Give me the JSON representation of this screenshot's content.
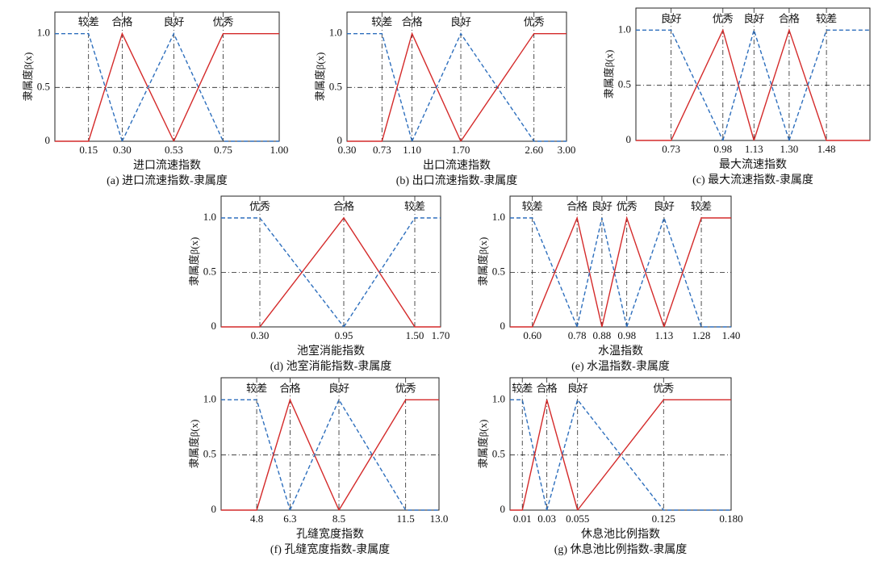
{
  "chart_data": [
    {
      "type": "line",
      "xlabel": "进口流速指数",
      "caption": "(a) 进口流速指数-隶属度",
      "ylabel": "隶属度β(x)",
      "xlim": [
        0,
        1
      ],
      "xticks": [
        0.15,
        {
          "value": 0.3,
          "label": "0.30"
        },
        0.53,
        0.75,
        {
          "value": 1,
          "label": "1.00"
        }
      ],
      "ylim": [
        0,
        1.2
      ],
      "yticks": [
        0,
        0.5,
        {
          "value": 1,
          "label": "1.0"
        }
      ],
      "grid": true,
      "series": [
        {
          "name": "较差",
          "color": "#2e6fbd",
          "dashed": true,
          "x": [
            0,
            0.15,
            0.3
          ],
          "values": [
            1,
            1,
            0
          ]
        },
        {
          "name": "合格",
          "color": "#d42a2a",
          "dashed": false,
          "x": [
            0,
            0.15,
            0.3,
            0.53
          ],
          "values": [
            0,
            0,
            1,
            0
          ]
        },
        {
          "name": "良好",
          "color": "#2e6fbd",
          "dashed": true,
          "x": [
            0.3,
            0.53,
            0.75,
            1
          ],
          "values": [
            0,
            1,
            0,
            0
          ]
        },
        {
          "name": "优秀",
          "color": "#d42a2a",
          "dashed": false,
          "x": [
            0.53,
            0.75,
            1
          ],
          "values": [
            0,
            1,
            1
          ]
        }
      ]
    },
    {
      "type": "line",
      "xlabel": "出口流速指数",
      "caption": "(b) 出口流速指数-隶属度",
      "ylabel": "隶属度β(x)",
      "xlim": [
        0.3,
        3
      ],
      "xticks": [
        {
          "value": 0.3,
          "label": "0.30"
        },
        0.73,
        {
          "value": 1.1,
          "label": "1.10"
        },
        {
          "value": 1.7,
          "label": "1.70"
        },
        {
          "value": 2.6,
          "label": "2.60"
        },
        {
          "value": 3,
          "label": "3.00"
        }
      ],
      "ylim": [
        0,
        1.2
      ],
      "yticks": [
        0,
        0.5,
        {
          "value": 1,
          "label": "1.0"
        }
      ],
      "grid": true,
      "series": [
        {
          "name": "较差",
          "color": "#2e6fbd",
          "dashed": true,
          "x": [
            0.3,
            0.73,
            1.1
          ],
          "values": [
            1,
            1,
            0
          ]
        },
        {
          "name": "合格",
          "color": "#d42a2a",
          "dashed": false,
          "x": [
            0.3,
            0.73,
            1.1,
            1.7
          ],
          "values": [
            0,
            0,
            1,
            0
          ]
        },
        {
          "name": "良好",
          "color": "#2e6fbd",
          "dashed": true,
          "x": [
            1.1,
            1.7,
            2.6,
            3
          ],
          "values": [
            0,
            1,
            0,
            0
          ]
        },
        {
          "name": "优秀",
          "color": "#d42a2a",
          "dashed": false,
          "x": [
            1.7,
            2.6,
            3
          ],
          "values": [
            0,
            1,
            1
          ]
        }
      ]
    },
    {
      "type": "line",
      "xlabel": "最大流速指数",
      "caption": "(c) 最大流速指数-隶属度",
      "ylabel": "隶属度β(x)",
      "xlim": [
        0.56,
        1.69
      ],
      "xticks": [
        0.73,
        0.98,
        1.13,
        {
          "value": 1.3,
          "label": "1.30"
        },
        1.48
      ],
      "ylim": [
        0,
        1.2
      ],
      "yticks": [
        0,
        0.5,
        {
          "value": 1,
          "label": "1.0"
        }
      ],
      "grid": true,
      "series": [
        {
          "name": "良好",
          "color": "#2e6fbd",
          "dashed": true,
          "x": [
            0.56,
            0.73,
            0.98
          ],
          "values": [
            1,
            1,
            0
          ]
        },
        {
          "name": "优秀",
          "color": "#d42a2a",
          "dashed": false,
          "x": [
            0.56,
            0.73,
            0.98,
            1.13
          ],
          "values": [
            0,
            0,
            1,
            0
          ]
        },
        {
          "name": "良好",
          "color": "#2e6fbd",
          "dashed": true,
          "x": [
            0.98,
            1.13,
            1.3
          ],
          "values": [
            0,
            1,
            0
          ]
        },
        {
          "name": "合格",
          "color": "#d42a2a",
          "dashed": false,
          "x": [
            1.13,
            1.3,
            1.48,
            1.69
          ],
          "values": [
            0,
            1,
            0,
            0
          ]
        },
        {
          "name": "较差",
          "color": "#2e6fbd",
          "dashed": true,
          "x": [
            1.3,
            1.48,
            1.69
          ],
          "values": [
            0,
            1,
            1
          ]
        }
      ]
    },
    {
      "type": "line",
      "xlabel": "池室消能指数",
      "caption": "(d) 池室消能指数-隶属度",
      "ylabel": "隶属度β(x)",
      "xlim": [
        0,
        1.7
      ],
      "xticks": [
        {
          "value": 0.3,
          "label": "0.30"
        },
        0.95,
        {
          "value": 1.5,
          "label": "1.50"
        },
        {
          "value": 1.7,
          "label": "1.70"
        }
      ],
      "ylim": [
        0,
        1.2
      ],
      "yticks": [
        0,
        0.5,
        {
          "value": 1,
          "label": "1.0"
        }
      ],
      "grid": true,
      "series": [
        {
          "name": "优秀",
          "color": "#2e6fbd",
          "dashed": true,
          "x": [
            0,
            0.3,
            0.95
          ],
          "values": [
            1,
            1,
            0
          ]
        },
        {
          "name": "合格",
          "color": "#d42a2a",
          "dashed": false,
          "x": [
            0,
            0.3,
            0.95,
            1.5,
            1.7
          ],
          "values": [
            0,
            0,
            1,
            0,
            0
          ]
        },
        {
          "name": "较差",
          "color": "#2e6fbd",
          "dashed": true,
          "x": [
            0.95,
            1.5,
            1.7
          ],
          "values": [
            0,
            1,
            1
          ]
        }
      ]
    },
    {
      "type": "line",
      "xlabel": "水温指数",
      "caption": "(e) 水温指数-隶属度",
      "ylabel": "隶属度β(x)",
      "xlim": [
        0.51,
        1.4
      ],
      "xticks": [
        {
          "value": 0.6,
          "label": "0.60"
        },
        0.78,
        0.88,
        0.98,
        1.13,
        1.28,
        {
          "value": 1.4,
          "label": "1.40"
        }
      ],
      "ylim": [
        0,
        1.2
      ],
      "yticks": [
        0,
        0.5,
        {
          "value": 1,
          "label": "1.0"
        }
      ],
      "grid": true,
      "series": [
        {
          "name": "较差",
          "color": "#2e6fbd",
          "dashed": true,
          "x": [
            0.51,
            0.6,
            0.78
          ],
          "values": [
            1,
            1,
            0
          ]
        },
        {
          "name": "合格",
          "color": "#d42a2a",
          "dashed": false,
          "x": [
            0.51,
            0.6,
            0.78,
            0.88
          ],
          "values": [
            0,
            0,
            1,
            0
          ]
        },
        {
          "name": "良好",
          "color": "#2e6fbd",
          "dashed": true,
          "x": [
            0.78,
            0.88,
            0.98
          ],
          "values": [
            0,
            1,
            0
          ]
        },
        {
          "name": "优秀",
          "color": "#d42a2a",
          "dashed": false,
          "x": [
            0.88,
            0.98,
            1.13
          ],
          "values": [
            0,
            1,
            0
          ]
        },
        {
          "name": "良好",
          "color": "#2e6fbd",
          "dashed": true,
          "x": [
            0.98,
            1.13,
            1.28,
            1.4
          ],
          "values": [
            0,
            1,
            0,
            0
          ]
        },
        {
          "name": "较差",
          "color": "#d42a2a",
          "dashed": false,
          "x": [
            1.13,
            1.28,
            1.4
          ],
          "values": [
            0,
            1,
            1
          ]
        }
      ]
    },
    {
      "type": "line",
      "xlabel": "孔缝宽度指数",
      "caption": "(f) 孔缝宽度指数-隶属度",
      "ylabel": "隶属度β(x)",
      "xlim": [
        3.2,
        13
      ],
      "xticks": [
        4.8,
        6.3,
        8.5,
        11.5,
        {
          "value": 13,
          "label": "13.0"
        }
      ],
      "ylim": [
        0,
        1.2
      ],
      "yticks": [
        0,
        0.5,
        {
          "value": 1,
          "label": "1.0"
        }
      ],
      "grid": true,
      "series": [
        {
          "name": "较差",
          "color": "#2e6fbd",
          "dashed": true,
          "x": [
            3.2,
            4.8,
            6.3
          ],
          "values": [
            1,
            1,
            0
          ]
        },
        {
          "name": "合格",
          "color": "#d42a2a",
          "dashed": false,
          "x": [
            3.2,
            4.8,
            6.3,
            8.5
          ],
          "values": [
            0,
            0,
            1,
            0
          ]
        },
        {
          "name": "良好",
          "color": "#2e6fbd",
          "dashed": true,
          "x": [
            6.3,
            8.5,
            11.5,
            13
          ],
          "values": [
            0,
            1,
            0,
            0
          ]
        },
        {
          "name": "优秀",
          "color": "#d42a2a",
          "dashed": false,
          "x": [
            8.5,
            11.5,
            13
          ],
          "values": [
            0,
            1,
            1
          ]
        }
      ]
    },
    {
      "type": "line",
      "xlabel": "休息池比例指数",
      "caption": "(g) 休息池比例指数-隶属度",
      "ylabel": "隶属度β(x)",
      "xlim": [
        0,
        0.18
      ],
      "xticks": [
        0.01,
        0.03,
        0.055,
        0.125,
        {
          "value": 0.18,
          "label": "0.180"
        }
      ],
      "ylim": [
        0,
        1.2
      ],
      "yticks": [
        0,
        0.5,
        {
          "value": 1,
          "label": "1.0"
        }
      ],
      "grid": true,
      "series": [
        {
          "name": "较差",
          "color": "#2e6fbd",
          "dashed": true,
          "x": [
            0,
            0.01,
            0.03
          ],
          "values": [
            1,
            1,
            0
          ]
        },
        {
          "name": "合格",
          "color": "#d42a2a",
          "dashed": false,
          "x": [
            0,
            0.01,
            0.03,
            0.055
          ],
          "values": [
            0,
            0,
            1,
            0
          ]
        },
        {
          "name": "良好",
          "color": "#2e6fbd",
          "dashed": true,
          "x": [
            0.03,
            0.055,
            0.125,
            0.18
          ],
          "values": [
            0,
            1,
            0,
            0
          ]
        },
        {
          "name": "优秀",
          "color": "#d42a2a",
          "dashed": false,
          "x": [
            0.055,
            0.125,
            0.18
          ],
          "values": [
            0,
            1,
            1
          ]
        }
      ]
    }
  ]
}
